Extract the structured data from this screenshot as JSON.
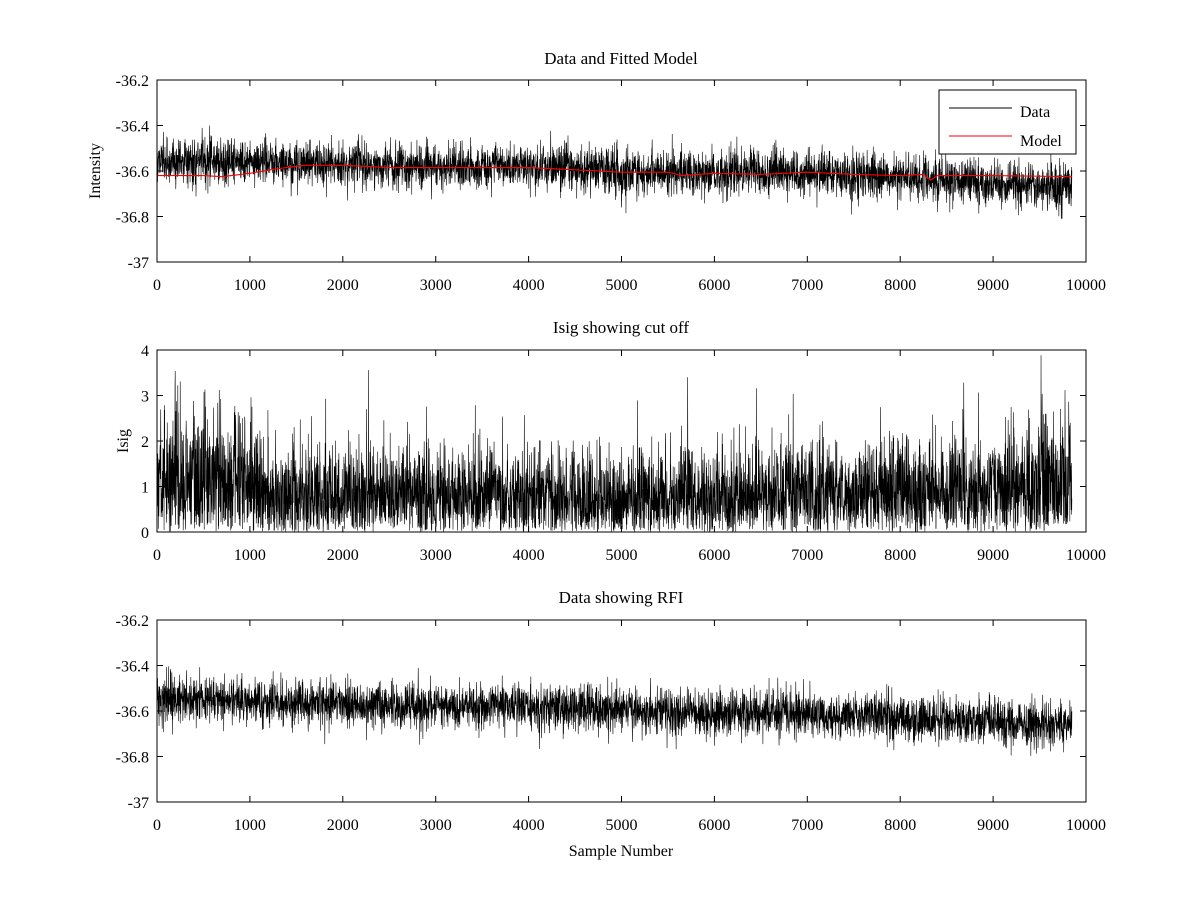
{
  "chart_data": [
    {
      "type": "line",
      "title": "Data and Fitted Model",
      "xlabel": "",
      "ylabel": "Intensity",
      "xlim": [
        0,
        10000
      ],
      "ylim": [
        -37,
        -36.2
      ],
      "xticks": [
        0,
        1000,
        2000,
        3000,
        4000,
        5000,
        6000,
        7000,
        8000,
        9000,
        10000
      ],
      "xtick_labels": [
        "0",
        "1000",
        "2000",
        "3000",
        "4000",
        "5000",
        "6000",
        "7000",
        "8000",
        "9000",
        "10000"
      ],
      "yticks": [
        -37,
        -36.8,
        -36.6,
        -36.4,
        -36.2
      ],
      "ytick_labels": [
        "-37",
        "-36.8",
        "-36.6",
        "-36.4",
        "-36.2"
      ],
      "legend": {
        "location": "top-right",
        "entries": [
          "Data",
          "Model"
        ]
      },
      "series": [
        {
          "name": "Data",
          "color": "#000000",
          "style": "dense noise around baseline",
          "sample_count": 9850,
          "baseline_x": [
            0,
            1000,
            2000,
            3000,
            4000,
            5000,
            6000,
            7000,
            8000,
            9000,
            9850
          ],
          "baseline_y": [
            -36.55,
            -36.56,
            -36.57,
            -36.58,
            -36.58,
            -36.6,
            -36.61,
            -36.61,
            -36.63,
            -36.65,
            -36.67
          ],
          "noise_spread": 0.05,
          "min_approx": -36.81,
          "max_approx": -36.4
        },
        {
          "name": "Model",
          "color": "#ff0000",
          "x": [
            0,
            500,
            700,
            1000,
            1300,
            1600,
            2000,
            2500,
            3000,
            3500,
            4000,
            4500,
            5000,
            5500,
            5650,
            6000,
            6500,
            7000,
            7500,
            8000,
            8250,
            8330,
            8400,
            9000,
            9850
          ],
          "y": [
            -36.62,
            -36.62,
            -36.625,
            -36.61,
            -36.59,
            -36.575,
            -36.575,
            -36.585,
            -36.585,
            -36.585,
            -36.585,
            -36.595,
            -36.605,
            -36.605,
            -36.62,
            -36.61,
            -36.615,
            -36.605,
            -36.615,
            -36.62,
            -36.615,
            -36.64,
            -36.62,
            -36.62,
            -36.625
          ]
        }
      ]
    },
    {
      "type": "line",
      "title": "Isig showing cut off",
      "xlabel": "",
      "ylabel": "Isig",
      "xlim": [
        0,
        10000
      ],
      "ylim": [
        0,
        4
      ],
      "xticks": [
        0,
        1000,
        2000,
        3000,
        4000,
        5000,
        6000,
        7000,
        8000,
        9000,
        10000
      ],
      "xtick_labels": [
        "0",
        "1000",
        "2000",
        "3000",
        "4000",
        "5000",
        "6000",
        "7000",
        "8000",
        "9000",
        "10000"
      ],
      "yticks": [
        0,
        1,
        2,
        3,
        4
      ],
      "ytick_labels": [
        "0",
        "1",
        "2",
        "3",
        "4"
      ],
      "series": [
        {
          "name": "Isig",
          "color": "#000000",
          "style": "dense non-negative noise",
          "sample_count": 9850,
          "baseline_x": [
            0,
            800,
            1200,
            3000,
            5000,
            7000,
            9000,
            9850
          ],
          "baseline_y": [
            1.2,
            1.15,
            0.8,
            0.75,
            0.75,
            0.8,
            0.9,
            1.05
          ],
          "max_approx": 4
        }
      ]
    },
    {
      "type": "line",
      "title": "Data showing RFI",
      "xlabel": "Sample Number",
      "ylabel": "",
      "xlim": [
        0,
        10000
      ],
      "ylim": [
        -37,
        -36.2
      ],
      "xticks": [
        0,
        1000,
        2000,
        3000,
        4000,
        5000,
        6000,
        7000,
        8000,
        9000,
        10000
      ],
      "xtick_labels": [
        "0",
        "1000",
        "2000",
        "3000",
        "4000",
        "5000",
        "6000",
        "7000",
        "8000",
        "9000",
        "10000"
      ],
      "yticks": [
        -37,
        -36.8,
        -36.6,
        -36.4,
        -36.2
      ],
      "ytick_labels": [
        "-37",
        "-36.8",
        "-36.6",
        "-36.4",
        "-36.2"
      ],
      "series": [
        {
          "name": "Data",
          "color": "#000000",
          "style": "dense noise around baseline",
          "sample_count": 9850,
          "baseline_x": [
            0,
            1000,
            2000,
            3000,
            4000,
            5000,
            6000,
            7000,
            8000,
            9000,
            9850
          ],
          "baseline_y": [
            -36.55,
            -36.56,
            -36.57,
            -36.58,
            -36.58,
            -36.6,
            -36.61,
            -36.61,
            -36.63,
            -36.65,
            -36.67
          ],
          "noise_spread": 0.05,
          "min_approx": -36.81,
          "max_approx": -36.4
        }
      ]
    }
  ]
}
